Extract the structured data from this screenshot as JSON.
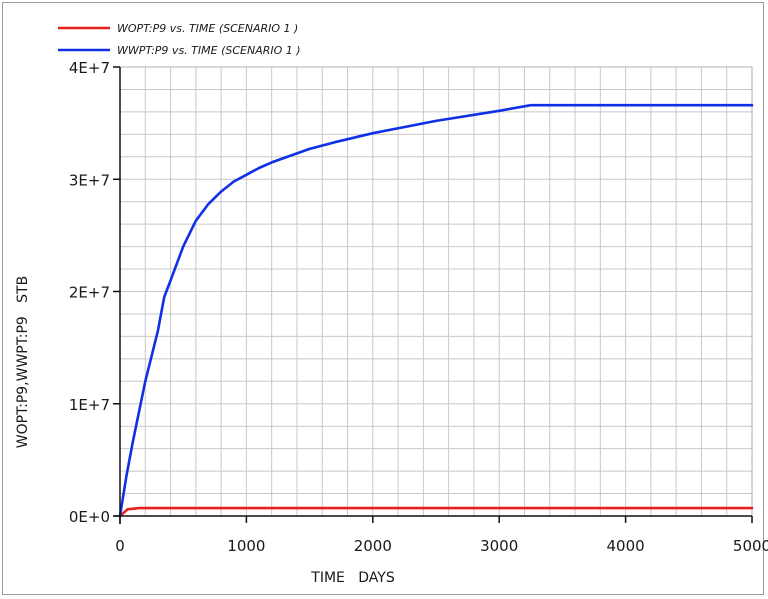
{
  "chart_data": {
    "type": "line",
    "title": "",
    "xlabel": "TIME   DAYS",
    "ylabel": "WOPT:P9,WWPT:P9   STB",
    "xlim": [
      0,
      5000
    ],
    "ylim": [
      0,
      40000000
    ],
    "x_ticks": [
      0,
      1000,
      2000,
      3000,
      4000,
      5000
    ],
    "x_tick_labels": [
      "0",
      "1000",
      "2000",
      "3000",
      "4000",
      "5000"
    ],
    "y_ticks": [
      0,
      10000000,
      20000000,
      30000000,
      40000000
    ],
    "y_tick_labels": [
      "0E+0",
      "1E+7",
      "2E+7",
      "3E+7",
      "4E+7"
    ],
    "grid": true,
    "legend_position": "top-left",
    "series": [
      {
        "name": "WOPT:P9  vs.  TIME (SCENARIO 1 )",
        "color": "#e8201c",
        "x": [
          0,
          60,
          150,
          1000,
          3000,
          5000
        ],
        "y": [
          0,
          600000,
          700000,
          700000,
          700000,
          700000
        ]
      },
      {
        "name": "WWPT:P9  vs.  TIME (SCENARIO 1 )",
        "color": "#1030e8",
        "x": [
          0,
          50,
          100,
          200,
          300,
          350,
          400,
          500,
          600,
          700,
          800,
          900,
          1000,
          1100,
          1200,
          1300,
          1400,
          1500,
          1700,
          2000,
          2500,
          3000,
          3250,
          4000,
          5000
        ],
        "y": [
          0,
          3500000,
          6500000,
          12000000,
          16500000,
          19500000,
          21000000,
          24000000,
          26300000,
          27800000,
          28900000,
          29800000,
          30400000,
          31000000,
          31500000,
          31900000,
          32300000,
          32700000,
          33300000,
          34100000,
          35200000,
          36100000,
          36600000,
          36600000,
          36600000
        ]
      }
    ]
  }
}
